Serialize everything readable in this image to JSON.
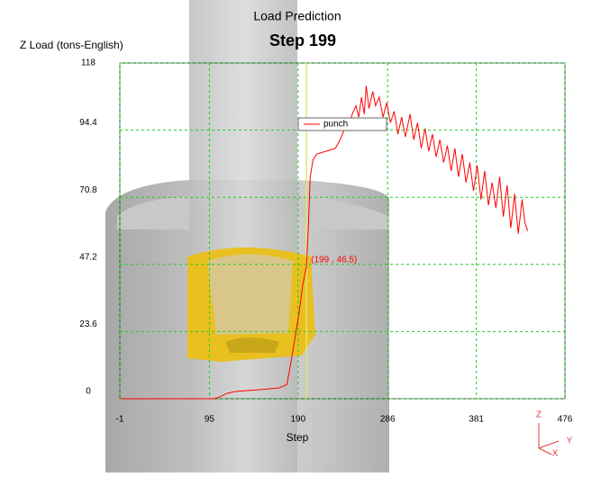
{
  "chart_data": {
    "type": "line",
    "title": "Load Prediction",
    "subtitle": "Step  199",
    "y_label": "Z Load (tons-English)",
    "x_label": "Step",
    "xlim": [
      -1,
      476
    ],
    "xticks": [
      -1,
      95,
      190,
      286,
      381,
      476
    ],
    "ylim": [
      0,
      118
    ],
    "yticks": [
      0,
      23.6,
      47.2,
      70.8,
      94.4,
      118
    ],
    "grid": true,
    "legend": "top",
    "series": [
      {
        "name": "punch",
        "color": "#ff0000",
        "x": [
          0,
          100,
          105,
          115,
          125,
          150,
          170,
          178,
          183,
          187,
          191,
          195,
          199,
          201,
          203,
          206,
          210,
          220,
          230,
          235,
          240,
          245,
          248,
          252,
          255,
          258,
          261,
          263,
          266,
          270,
          273,
          277,
          281,
          285,
          289,
          293,
          297,
          301,
          305,
          310,
          314,
          318,
          322,
          326,
          330,
          334,
          338,
          342,
          346,
          350,
          354,
          358,
          362,
          366,
          370,
          374,
          378,
          382,
          386,
          390,
          394,
          398,
          402,
          406,
          410,
          414,
          418,
          422,
          426,
          430,
          433,
          436
        ],
        "values": [
          0,
          0,
          0.5,
          2,
          2.6,
          3.2,
          3.8,
          5,
          14,
          22,
          30,
          40,
          46.5,
          60,
          78,
          84,
          86,
          87,
          88,
          91,
          95,
          97,
          100,
          103,
          99,
          106,
          100,
          110,
          102,
          108,
          103,
          106,
          99,
          104,
          97,
          101,
          93,
          99,
          92,
          100,
          91,
          97,
          88,
          95,
          87,
          93,
          85,
          91,
          83,
          89,
          80,
          88,
          78,
          86,
          76,
          83,
          73,
          82,
          70,
          80,
          68,
          76,
          67,
          78,
          64,
          75,
          60,
          72,
          58,
          70,
          62,
          59
        ]
      }
    ],
    "annotation": {
      "x": 199,
      "y": 46.5,
      "label": "(199 , 46.5)"
    },
    "triad_labels": [
      "Z",
      "Y",
      "X"
    ]
  }
}
